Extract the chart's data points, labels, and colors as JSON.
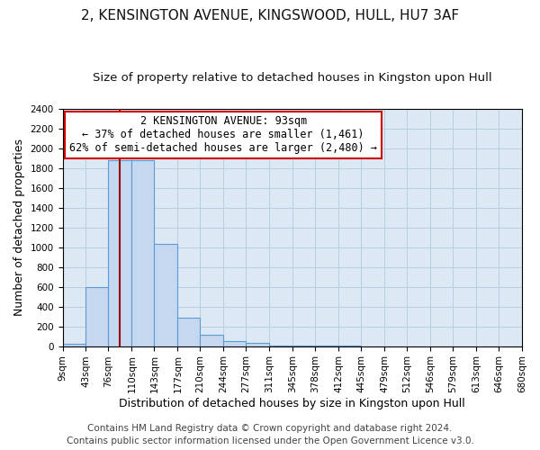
{
  "title1": "2, KENSINGTON AVENUE, KINGSWOOD, HULL, HU7 3AF",
  "title2": "Size of property relative to detached houses in Kingston upon Hull",
  "xlabel": "Distribution of detached houses by size in Kingston upon Hull",
  "ylabel": "Number of detached properties",
  "footer1": "Contains HM Land Registry data © Crown copyright and database right 2024.",
  "footer2": "Contains public sector information licensed under the Open Government Licence v3.0.",
  "bin_edges": [
    9,
    43,
    76,
    110,
    143,
    177,
    210,
    244,
    277,
    311,
    345,
    378,
    412,
    445,
    479,
    512,
    546,
    579,
    613,
    646,
    680
  ],
  "bar_heights": [
    25,
    600,
    1880,
    1880,
    1030,
    290,
    115,
    55,
    30,
    8,
    3,
    2,
    1,
    0,
    0,
    0,
    0,
    0,
    0,
    0
  ],
  "bar_color": "#c5d8f0",
  "bar_edge_color": "#5b9bd5",
  "property_size": 93,
  "vline_color": "#990000",
  "annotation_text": "2 KENSINGTON AVENUE: 93sqm\n← 37% of detached houses are smaller (1,461)\n62% of semi-detached houses are larger (2,480) →",
  "annotation_box_color": "#ffffff",
  "annotation_box_edge_color": "#cc0000",
  "ylim": [
    0,
    2400
  ],
  "yticks": [
    0,
    200,
    400,
    600,
    800,
    1000,
    1200,
    1400,
    1600,
    1800,
    2000,
    2200,
    2400
  ],
  "grid_color": "#b8cfe0",
  "background_color": "#dce9f5",
  "title1_fontsize": 11,
  "title2_fontsize": 9.5,
  "xlabel_fontsize": 9,
  "ylabel_fontsize": 9,
  "tick_fontsize": 7.5,
  "footer_fontsize": 7.5,
  "annotation_fontsize": 8.5
}
